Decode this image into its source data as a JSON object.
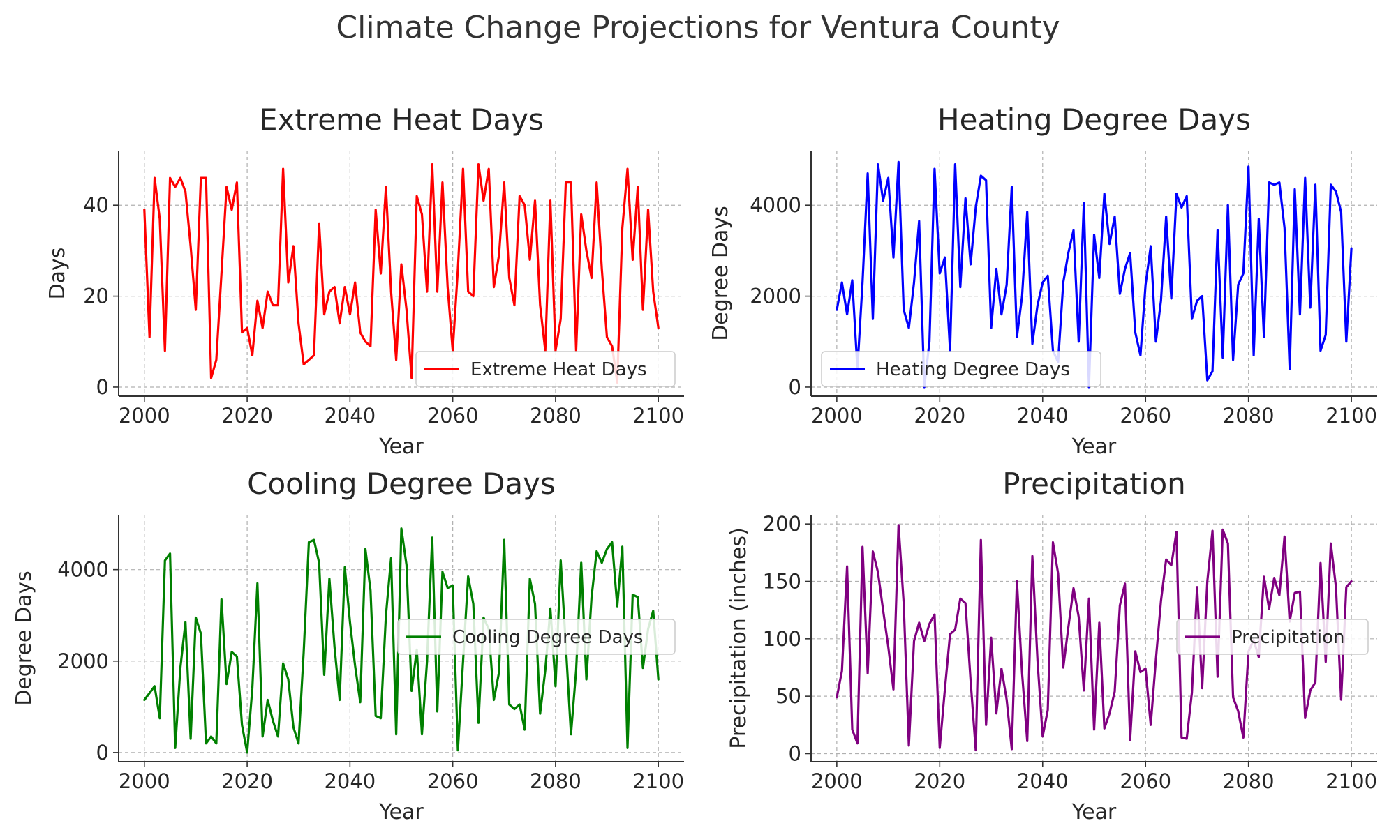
{
  "title": "Climate Change Projections for Ventura County",
  "chart_data": [
    {
      "type": "line",
      "title": "Extreme Heat Days",
      "xlabel": "Year",
      "ylabel": "Days",
      "xlim": [
        1995,
        2105
      ],
      "ylim": [
        -2,
        52
      ],
      "xticks": [
        "2000",
        "2020",
        "2040",
        "2060",
        "2080",
        "2100"
      ],
      "yticks": [
        "0",
        "20",
        "40"
      ],
      "grid": true,
      "legend": "lower right",
      "x_start": 2000,
      "series": [
        {
          "name": "Extreme Heat Days",
          "color": "#ff0000",
          "values": [
            39,
            11,
            46,
            37,
            8,
            46,
            44,
            46,
            43,
            31,
            17,
            46,
            46,
            2,
            6,
            25,
            44,
            39,
            45,
            12,
            13,
            7,
            19,
            13,
            21,
            18,
            18,
            48,
            23,
            31,
            14,
            5,
            6,
            7,
            36,
            16,
            21,
            22,
            14,
            22,
            16,
            23,
            12,
            10,
            9,
            39,
            25,
            44,
            21,
            6,
            27,
            17,
            2,
            42,
            38,
            21,
            49,
            21,
            45,
            22,
            8,
            26,
            48,
            21,
            20,
            49,
            41,
            48,
            22,
            29,
            45,
            24,
            18,
            42,
            40,
            28,
            41,
            18,
            8,
            41,
            8,
            15,
            45,
            45,
            8,
            38,
            30,
            24,
            45,
            26,
            11,
            9,
            1,
            35,
            48,
            28,
            44,
            17,
            39,
            21,
            13
          ]
        }
      ]
    },
    {
      "type": "line",
      "title": "Heating Degree Days",
      "xlabel": "Year",
      "ylabel": "Degree Days",
      "xlim": [
        1995,
        2105
      ],
      "ylim": [
        -200,
        5200
      ],
      "xticks": [
        "2000",
        "2020",
        "2040",
        "2060",
        "2080",
        "2100"
      ],
      "yticks": [
        "0",
        "2000",
        "4000"
      ],
      "grid": true,
      "legend": "lower left",
      "x_start": 2000,
      "series": [
        {
          "name": "Heating Degree Days",
          "color": "#0000ff",
          "values": [
            1700,
            2300,
            1600,
            2350,
            400,
            2300,
            4700,
            1500,
            4900,
            4100,
            4600,
            2850,
            4950,
            1700,
            1300,
            2300,
            3650,
            0,
            1000,
            4800,
            2500,
            2850,
            800,
            4900,
            2200,
            4150,
            2700,
            3950,
            4650,
            4550,
            1300,
            2600,
            1600,
            2250,
            4400,
            1100,
            2000,
            3850,
            950,
            1800,
            2300,
            2450,
            800,
            550,
            2300,
            2950,
            3450,
            1000,
            4050,
            0,
            3350,
            2400,
            4250,
            3150,
            3750,
            2050,
            2600,
            2950,
            1200,
            700,
            2250,
            3100,
            1000,
            1900,
            3750,
            1950,
            4250,
            3950,
            4200,
            1500,
            1900,
            2000,
            150,
            350,
            3450,
            650,
            4000,
            600,
            2250,
            2500,
            4850,
            700,
            3700,
            1100,
            4500,
            4450,
            4500,
            3500,
            400,
            4350,
            1600,
            4600,
            1750,
            4450,
            800,
            1150,
            4450,
            4300,
            3850,
            1000,
            3050
          ]
        }
      ]
    },
    {
      "type": "line",
      "title": "Cooling Degree Days",
      "xlabel": "Year",
      "ylabel": "Degree Days",
      "xlim": [
        1995,
        2105
      ],
      "ylim": [
        -200,
        5200
      ],
      "xticks": [
        "2000",
        "2020",
        "2040",
        "2060",
        "2080",
        "2100"
      ],
      "yticks": [
        "0",
        "2000",
        "4000"
      ],
      "grid": true,
      "legend": "center right",
      "x_start": 2000,
      "series": [
        {
          "name": "Cooling Degree Days",
          "color": "#008000",
          "values": [
            1150,
            1300,
            1450,
            750,
            4200,
            4350,
            100,
            1850,
            2850,
            300,
            2950,
            2600,
            200,
            350,
            200,
            3350,
            1500,
            2200,
            2100,
            600,
            0,
            1400,
            3700,
            350,
            1150,
            700,
            350,
            1950,
            1600,
            550,
            200,
            2200,
            4600,
            4650,
            4150,
            1700,
            3800,
            2300,
            1150,
            4050,
            2850,
            1900,
            1100,
            4450,
            3550,
            800,
            750,
            3000,
            4250,
            400,
            4900,
            4100,
            1350,
            2250,
            400,
            2000,
            4700,
            900,
            3950,
            3600,
            3650,
            50,
            2000,
            3850,
            3250,
            650,
            2950,
            2700,
            1150,
            1750,
            4650,
            1050,
            950,
            1050,
            500,
            3800,
            3250,
            850,
            1800,
            3150,
            1450,
            4200,
            2350,
            400,
            1800,
            4150,
            1600,
            3400,
            4400,
            4150,
            4450,
            4600,
            3200,
            4500,
            100,
            3450,
            3400,
            1850,
            2700,
            3100,
            1600
          ]
        }
      ]
    },
    {
      "type": "line",
      "title": "Precipitation",
      "xlabel": "Year",
      "ylabel": "Precipitation (inches)",
      "xlim": [
        1995,
        2105
      ],
      "ylim": [
        -7,
        208
      ],
      "xticks": [
        "2000",
        "2020",
        "2040",
        "2060",
        "2080",
        "2100"
      ],
      "yticks": [
        "0",
        "50",
        "100",
        "150",
        "200"
      ],
      "grid": true,
      "legend": "center right",
      "x_start": 2000,
      "series": [
        {
          "name": "Precipitation",
          "color": "#800080",
          "values": [
            49,
            72,
            163,
            21,
            9,
            180,
            70,
            176,
            158,
            125,
            93,
            56,
            199,
            131,
            7,
            98,
            114,
            98,
            113,
            121,
            5,
            56,
            104,
            108,
            135,
            131,
            63,
            3,
            186,
            25,
            101,
            35,
            74,
            47,
            4,
            150,
            70,
            11,
            172,
            81,
            15,
            38,
            184,
            157,
            75,
            110,
            144,
            119,
            55,
            135,
            21,
            114,
            22,
            35,
            54,
            129,
            148,
            12,
            89,
            71,
            74,
            25,
            82,
            133,
            169,
            164,
            193,
            14,
            13,
            53,
            145,
            57,
            150,
            194,
            67,
            195,
            183,
            49,
            37,
            14,
            89,
            99,
            84,
            154,
            126,
            153,
            138,
            189,
            115,
            140,
            141,
            31,
            55,
            62,
            166,
            80,
            183,
            145,
            47,
            145,
            150
          ]
        }
      ]
    }
  ]
}
